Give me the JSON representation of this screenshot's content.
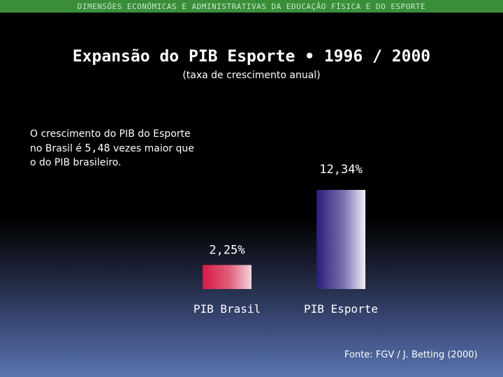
{
  "header": {
    "banner": "DIMENSÕES ECONÔMICAS E ADMINISTRATIVAS DA EDUCAÇÃO FÍSICA E DO ESPORTE"
  },
  "note": {
    "text_before": "O crescimento do PIB do Esporte no Brasil é ",
    "highlight": "5,48",
    "text_after": " vezes maior que o do PIB brasileiro."
  },
  "source": "Fonte: FGV / J. Betting (2000)",
  "colors": {
    "bar_brasil": "#d81848",
    "bar_esporte": "#2a1e78"
  },
  "chart_data": {
    "type": "bar",
    "title": "Expansão do PIB Esporte • 1996 / 2000",
    "subtitle": "(taxa de crescimento anual)",
    "categories": [
      "PIB Brasil",
      "PIB Esporte"
    ],
    "values": [
      2.25,
      12.34
    ],
    "value_labels": [
      "2,25%",
      "12,34%"
    ],
    "ylim": [
      0,
      12.34
    ],
    "grid": false,
    "legend": "none"
  }
}
